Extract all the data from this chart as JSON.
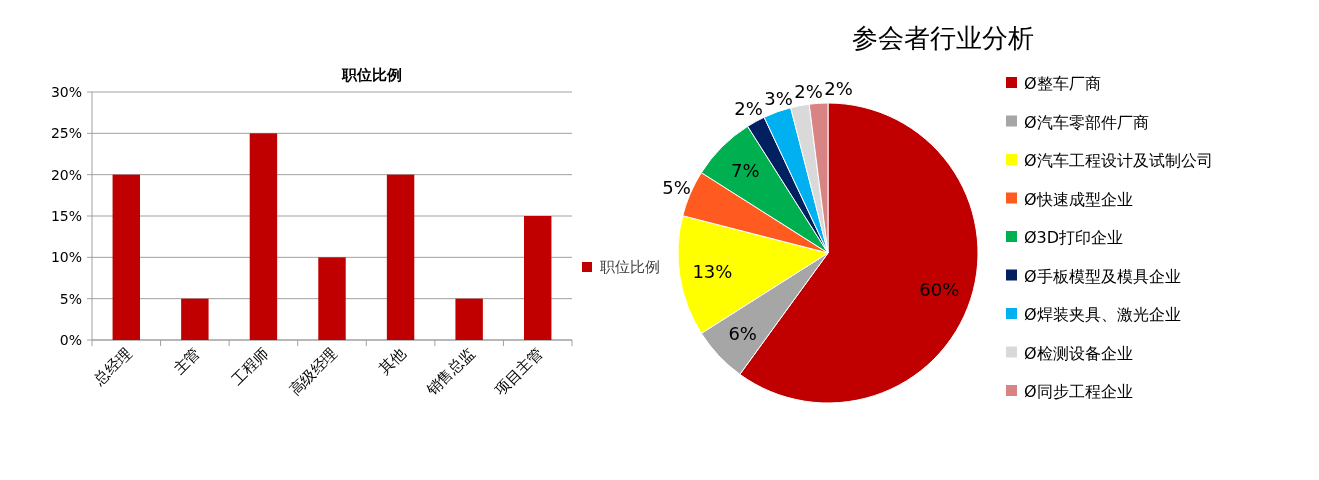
{
  "chart_data": [
    {
      "type": "bar",
      "title": "职位比例",
      "categories": [
        "总经理",
        "主管",
        "工程师",
        "高级经理",
        "其他",
        "销售总监",
        "项目主管"
      ],
      "series": [
        {
          "name": "职位比例",
          "color": "#c00000",
          "values": [
            20,
            5,
            25,
            10,
            20,
            5,
            15
          ]
        }
      ],
      "ylim": [
        0,
        30
      ],
      "yticks": [
        {
          "value": 0,
          "label": "0%"
        },
        {
          "value": 5,
          "label": "5%"
        },
        {
          "value": 10,
          "label": "10%"
        },
        {
          "value": 15,
          "label": "15%"
        },
        {
          "value": 20,
          "label": "20%"
        },
        {
          "value": 25,
          "label": "25%"
        },
        {
          "value": 30,
          "label": "30%"
        }
      ],
      "grid": "y",
      "legend": "right"
    },
    {
      "type": "pie",
      "title": "参会者行业分析",
      "categories": [
        "Ø整车厂商",
        "Ø汽车零部件厂商",
        "Ø汽车工程设计及试制公司",
        "Ø快速成型企业",
        "Ø3D打印企业",
        "Ø手板模型及模具企业",
        "Ø焊装夹具、激光企业",
        "Ø检测设备企业",
        "Ø同步工程企业"
      ],
      "values": [
        60,
        6,
        13,
        5,
        7,
        2,
        3,
        2,
        2
      ],
      "colors": [
        "#c00000",
        "#a6a6a6",
        "#ffff00",
        "#ff5a1f",
        "#00b050",
        "#002060",
        "#00b0f0",
        "#d9d9d9",
        "#d88484"
      ],
      "value_labels": [
        "60%",
        "6%",
        "13%",
        "5%",
        "7%",
        "2%",
        "3%",
        "2%",
        "2%"
      ],
      "legend": "right"
    }
  ]
}
